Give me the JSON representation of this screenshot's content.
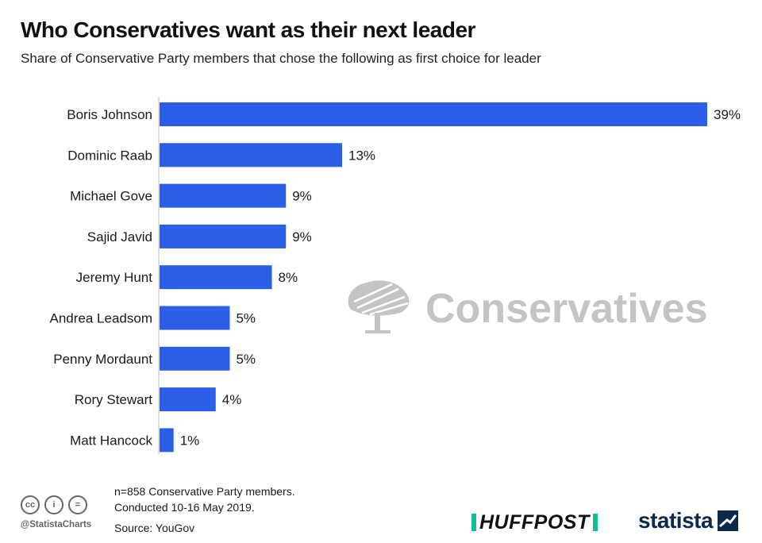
{
  "header": {
    "title": "Who Conservatives want as their next leader",
    "subtitle": "Share of Conservative Party members that chose the following as first choice for leader"
  },
  "chart_data": {
    "type": "bar",
    "orientation": "horizontal",
    "categories": [
      "Boris Johnson",
      "Dominic Raab",
      "Michael Gove",
      "Sajid Javid",
      "Jeremy Hunt",
      "Andrea Leadsom",
      "Penny Mordaunt",
      "Rory Stewart",
      "Matt Hancock"
    ],
    "values": [
      39,
      13,
      9,
      9,
      8,
      5,
      5,
      4,
      1
    ],
    "value_labels": [
      "39%",
      "13%",
      "9%",
      "9%",
      "8%",
      "5%",
      "5%",
      "4%",
      "1%"
    ],
    "unit": "%",
    "xlim": [
      0,
      39
    ],
    "bar_color": "#2b5fe8",
    "grid": false,
    "legend": "none"
  },
  "watermark": {
    "text": "Conservatives",
    "icon": "oak-tree-logo-icon",
    "color": "#c4c4c4"
  },
  "footer": {
    "note_line1": "n=858 Conservative Party members.",
    "note_line2": "Conducted 10-16 May 2019.",
    "source": "Source: YouGov",
    "handle": "@StatistaCharts",
    "license_icons": [
      "cc-icon",
      "by-person-icon",
      "equals-nd-icon"
    ],
    "license_glyphs": [
      "cc",
      "i",
      "="
    ],
    "huffpost_logo": "HUFFPOST",
    "huffpost_accent": "#0dbe98",
    "statista_logo": "statista",
    "statista_color": "#0b2a4a"
  }
}
